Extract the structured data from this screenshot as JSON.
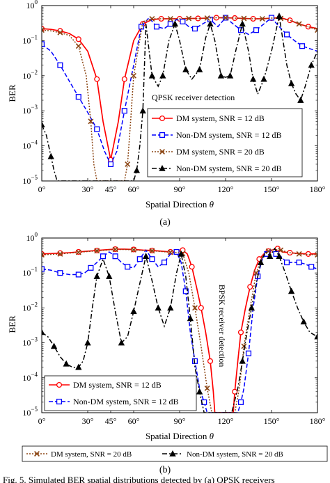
{
  "figure": {
    "caption_label": "Fig. 5.",
    "caption_text": "Simulated BER spatial distributions detected by (a) QPSK receivers"
  },
  "colors": {
    "dm": "#ff0000",
    "nondm": "#0000ff",
    "dm20": "#8b4513",
    "nondm20": "#000000"
  },
  "chart_data": [
    {
      "type": "line",
      "panel_label": "(a)",
      "xlabel": "Spatial Direction",
      "xlabel_symbol": "θ",
      "ylabel": "BER",
      "yscale": "log",
      "ylim": [
        1e-05,
        1
      ],
      "xlim": [
        0,
        180
      ],
      "xticks": [
        0,
        30,
        45,
        60,
        90,
        120,
        150,
        180
      ],
      "xtick_labels": [
        "0°",
        "30°",
        "45°",
        "60°",
        "90°",
        "120°",
        "150°",
        "180°"
      ],
      "yticks": [
        1e-05,
        0.0001,
        0.001,
        0.01,
        0.1,
        1
      ],
      "ytick_labels": [
        [
          "10",
          "−5"
        ],
        [
          "10",
          "−4"
        ],
        [
          "10",
          "−3"
        ],
        [
          "10",
          "−2"
        ],
        [
          "10",
          "−1"
        ],
        [
          "10",
          "0"
        ]
      ],
      "annotation": "QPSK receiver detection",
      "legend_position": "bottom-right",
      "grid": false,
      "series": [
        {
          "name": "DM system, SNR = 12 dB",
          "color": "#ff0000",
          "dash": "solid",
          "marker": "circle",
          "x": [
            0,
            6,
            12,
            18,
            24,
            30,
            36,
            40,
            45,
            50,
            54,
            60,
            66,
            72,
            78,
            84,
            90,
            96,
            102,
            108,
            114,
            120,
            126,
            132,
            138,
            144,
            150,
            156,
            162,
            168,
            174,
            180
          ],
          "y": [
            0.22,
            0.21,
            0.19,
            0.16,
            0.11,
            0.05,
            0.008,
            0.0005,
            4e-05,
            0.0005,
            0.008,
            0.1,
            0.3,
            0.4,
            0.42,
            0.42,
            0.42,
            0.43,
            0.43,
            0.44,
            0.45,
            0.45,
            0.44,
            0.43,
            0.42,
            0.42,
            0.44,
            0.45,
            0.38,
            0.3,
            0.25,
            0.22
          ]
        },
        {
          "name": "Non-DM system, SNR = 12 dB",
          "color": "#0000ff",
          "dash": "dashed",
          "marker": "square",
          "x": [
            0,
            6,
            12,
            18,
            24,
            30,
            36,
            41,
            45,
            49,
            54,
            60,
            65,
            70,
            75,
            80,
            84,
            88,
            92,
            96,
            100,
            105,
            110,
            115,
            120,
            125,
            130,
            135,
            140,
            145,
            150,
            155,
            160,
            165,
            170,
            180
          ],
          "y": [
            0.08,
            0.05,
            0.02,
            0.007,
            0.0025,
            0.0009,
            0.0003,
            7e-05,
            3e-05,
            7e-05,
            0.001,
            0.02,
            0.25,
            0.45,
            0.25,
            0.22,
            0.3,
            0.4,
            0.35,
            0.25,
            0.22,
            0.3,
            0.4,
            0.25,
            0.45,
            0.3,
            0.2,
            0.15,
            0.2,
            0.3,
            0.45,
            0.25,
            0.15,
            0.1,
            0.07,
            0.05
          ]
        },
        {
          "name": "DM system, SNR = 20 dB",
          "color": "#8b4513",
          "dash": "dotted",
          "marker": "x",
          "x": [
            0,
            6,
            12,
            18,
            24,
            29,
            32,
            34,
            36,
            54,
            56,
            58,
            60,
            66,
            72,
            78,
            84,
            90,
            96,
            102,
            108,
            114,
            120,
            126,
            132,
            138,
            144,
            150,
            156,
            162,
            168,
            174,
            180
          ],
          "y": [
            0.2,
            0.19,
            0.17,
            0.14,
            0.07,
            0.01,
            0.0005,
            3e-05,
            1e-05,
            1e-05,
            3e-05,
            0.0005,
            0.01,
            0.35,
            0.42,
            0.42,
            0.42,
            0.42,
            0.43,
            0.43,
            0.44,
            0.45,
            0.45,
            0.44,
            0.43,
            0.42,
            0.42,
            0.44,
            0.43,
            0.38,
            0.3,
            0.25,
            0.2
          ]
        },
        {
          "name": "Non-DM system, SNR = 20 dB",
          "color": "#000000",
          "dash": "dashdot",
          "marker": "triangle",
          "x": [
            0,
            3,
            6,
            8,
            10,
            60,
            62,
            64,
            66,
            68,
            72,
            76,
            79,
            83,
            87,
            90,
            94,
            98,
            103,
            107,
            110,
            113,
            117,
            120,
            123,
            127,
            131,
            135,
            138,
            141,
            145,
            150,
            155,
            160,
            163,
            166,
            169,
            172,
            176,
            180
          ],
          "y": [
            0.0004,
            0.0002,
            5e-05,
            2e-05,
            1e-05,
            1e-05,
            2e-05,
            0.0001,
            0.001,
            0.3,
            0.01,
            0.005,
            0.01,
            0.1,
            0.3,
            0.1,
            0.015,
            0.008,
            0.015,
            0.12,
            0.3,
            0.1,
            0.01,
            0.009,
            0.01,
            0.06,
            0.3,
            0.05,
            0.008,
            0.003,
            0.008,
            0.05,
            0.5,
            0.02,
            0.006,
            0.003,
            0.002,
            0.005,
            0.02,
            0.05
          ]
        }
      ]
    },
    {
      "type": "line",
      "panel_label": "(b)",
      "xlabel": "Spatial Direction",
      "xlabel_symbol": "θ",
      "ylabel": "BER",
      "yscale": "log",
      "ylim": [
        1e-05,
        1
      ],
      "xlim": [
        0,
        180
      ],
      "xticks": [
        0,
        30,
        45,
        60,
        90,
        120,
        150,
        180
      ],
      "xtick_labels": [
        "0°",
        "30°",
        "45°",
        "60°",
        "90°",
        "120°",
        "150°",
        "180°"
      ],
      "yticks": [
        1e-05,
        0.0001,
        0.001,
        0.01,
        0.1,
        1
      ],
      "ytick_labels": [
        [
          "10",
          "−5"
        ],
        [
          "10",
          "−4"
        ],
        [
          "10",
          "−3"
        ],
        [
          "10",
          "−2"
        ],
        [
          "10",
          "−1"
        ],
        [
          "10",
          "0"
        ]
      ],
      "annotation": "BPSK receiver detection",
      "legend_position": "bottom-left + below plot",
      "grid": false,
      "series": [
        {
          "name": "DM system, SNR = 12 dB",
          "color": "#ff0000",
          "dash": "solid",
          "marker": "circle",
          "x": [
            0,
            6,
            12,
            18,
            24,
            30,
            36,
            42,
            48,
            54,
            60,
            66,
            72,
            78,
            84,
            88,
            92,
            95,
            98,
            101,
            104,
            107,
            110,
            112,
            113,
            125,
            126,
            128,
            130,
            133,
            136,
            139,
            142,
            145,
            148,
            151,
            154,
            157,
            162,
            168,
            174,
            180
          ],
          "y": [
            0.35,
            0.36,
            0.37,
            0.38,
            0.4,
            0.42,
            0.44,
            0.46,
            0.48,
            0.48,
            0.47,
            0.45,
            0.44,
            0.42,
            0.4,
            0.4,
            0.45,
            0.35,
            0.15,
            0.04,
            0.01,
            0.002,
            0.0003,
            4e-05,
            1e-05,
            1e-05,
            4e-05,
            0.0003,
            0.002,
            0.01,
            0.04,
            0.12,
            0.25,
            0.35,
            0.42,
            0.46,
            0.5,
            0.4,
            0.38,
            0.36,
            0.35,
            0.35
          ]
        },
        {
          "name": "Non-DM system, SNR = 12 dB",
          "color": "#0000ff",
          "dash": "dashed",
          "marker": "square",
          "x": [
            0,
            6,
            12,
            18,
            24,
            28,
            32,
            36,
            40,
            44,
            48,
            52,
            56,
            60,
            64,
            68,
            72,
            76,
            80,
            84,
            88,
            91,
            94,
            97,
            100,
            103,
            106,
            108,
            110,
            128,
            130,
            132,
            135,
            138,
            141,
            144,
            147,
            150,
            153,
            156,
            160,
            164,
            168,
            172,
            176,
            180
          ],
          "y": [
            0.13,
            0.12,
            0.1,
            0.09,
            0.09,
            0.1,
            0.14,
            0.2,
            0.3,
            0.4,
            0.3,
            0.2,
            0.15,
            0.14,
            0.25,
            0.45,
            0.25,
            0.15,
            0.2,
            0.35,
            0.4,
            0.2,
            0.03,
            0.002,
            0.0003,
            5e-05,
            2e-05,
            1e-05,
            1e-05,
            1e-05,
            2e-05,
            5e-05,
            0.0005,
            0.01,
            0.08,
            0.25,
            0.35,
            0.45,
            0.35,
            0.3,
            0.2,
            0.2,
            0.2,
            0.18,
            0.15,
            0.13
          ]
        },
        {
          "name": "DM system, SNR = 20 dB",
          "color": "#8b4513",
          "dash": "dotted",
          "marker": "x",
          "x": [
            0,
            6,
            12,
            18,
            24,
            30,
            36,
            42,
            48,
            54,
            60,
            66,
            72,
            78,
            84,
            90,
            92,
            96,
            100,
            104,
            108,
            111,
            126,
            129,
            132,
            136,
            140,
            144,
            148,
            152,
            156,
            162,
            168,
            174,
            180
          ],
          "y": [
            0.33,
            0.34,
            0.35,
            0.37,
            0.39,
            0.41,
            0.43,
            0.45,
            0.47,
            0.47,
            0.46,
            0.44,
            0.43,
            0.41,
            0.39,
            0.38,
            0.36,
            0.1,
            0.01,
            0.0008,
            5e-05,
            1e-05,
            1e-05,
            5e-05,
            0.0008,
            0.01,
            0.1,
            0.3,
            0.42,
            0.47,
            0.45,
            0.38,
            0.35,
            0.34,
            0.33
          ]
        },
        {
          "name": "Non-DM system, SNR = 20 dB",
          "color": "#000000",
          "dash": "dashdot",
          "marker": "triangle",
          "x": [
            0,
            4,
            8,
            12,
            16,
            20,
            24,
            27,
            30,
            33,
            36,
            40,
            44,
            48,
            52,
            56,
            60,
            64,
            68,
            72,
            76,
            80,
            84,
            88,
            91,
            94,
            97,
            100,
            103,
            106,
            110,
            120,
            124,
            128,
            131,
            134,
            137,
            140,
            143,
            146,
            149,
            152,
            155,
            159,
            163,
            167,
            171,
            175,
            180
          ],
          "y": [
            0.002,
            0.0015,
            0.0008,
            0.0004,
            0.00025,
            0.0002,
            0.0002,
            0.0003,
            0.001,
            0.01,
            0.08,
            0.25,
            0.08,
            0.008,
            0.001,
            0.0015,
            0.008,
            0.05,
            0.3,
            0.06,
            0.01,
            0.003,
            0.01,
            0.1,
            0.35,
            0.08,
            0.005,
            0.0002,
            4e-05,
            1e-05,
            1e-05,
            1e-05,
            1e-05,
            5e-05,
            0.0003,
            0.002,
            0.01,
            0.05,
            0.2,
            0.4,
            0.3,
            0.5,
            0.3,
            0.1,
            0.03,
            0.01,
            0.004,
            0.002,
            0.0015
          ]
        }
      ]
    }
  ]
}
